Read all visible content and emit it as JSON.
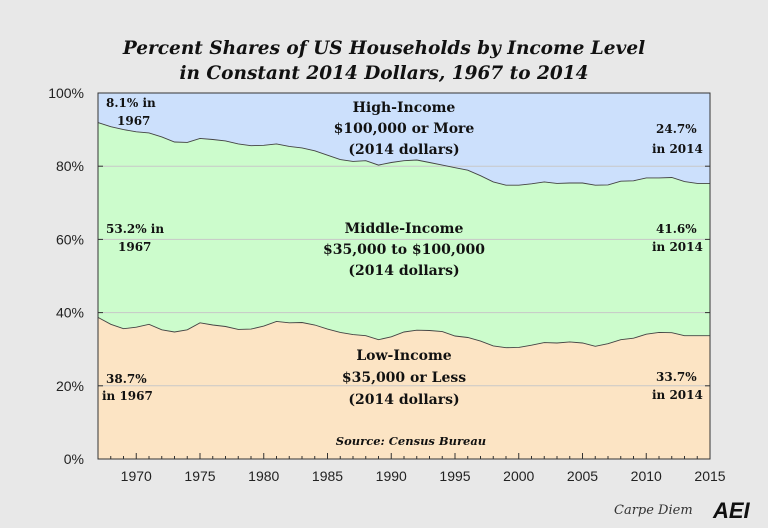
{
  "chart_data": {
    "type": "area",
    "title": [
      "Percent Shares of US Households by Income Level",
      "in Constant 2014 Dollars, 1967 to 2014"
    ],
    "xlabel": "",
    "ylabel": "",
    "xlim": [
      1967,
      2015
    ],
    "ylim": [
      0,
      100
    ],
    "x_ticks": [
      1970,
      1975,
      1980,
      1985,
      1990,
      1995,
      2000,
      2005,
      2010,
      2015
    ],
    "x_tick_labels": [
      "1970",
      "1975",
      "1980",
      "1985",
      "1990",
      "1995",
      "2000",
      "2005",
      "2010",
      "2015"
    ],
    "y_ticks": [
      0,
      20,
      40,
      60,
      80,
      100
    ],
    "y_tick_labels": [
      "0%",
      "20%",
      "40%",
      "60%",
      "80%",
      "100%"
    ],
    "grid": true,
    "x": [
      1967,
      1968,
      1969,
      1970,
      1971,
      1972,
      1973,
      1974,
      1975,
      1976,
      1977,
      1978,
      1979,
      1980,
      1981,
      1982,
      1983,
      1984,
      1985,
      1986,
      1987,
      1988,
      1989,
      1990,
      1991,
      1992,
      1993,
      1994,
      1995,
      1996,
      1997,
      1998,
      1999,
      2000,
      2001,
      2002,
      2003,
      2004,
      2005,
      2006,
      2007,
      2008,
      2009,
      2010,
      2011,
      2012,
      2013,
      2014
    ],
    "series": [
      {
        "name": "Low-Income",
        "color": "#fce4c4",
        "values": [
          38.7,
          36.8,
          35.6,
          36.0,
          36.8,
          35.3,
          34.7,
          35.3,
          37.2,
          36.6,
          36.2,
          35.4,
          35.5,
          36.3,
          37.6,
          37.2,
          37.3,
          36.6,
          35.5,
          34.6,
          34.0,
          33.7,
          32.6,
          33.4,
          34.7,
          35.2,
          35.1,
          34.8,
          33.6,
          33.2,
          32.2,
          30.9,
          30.4,
          30.5,
          31.1,
          31.8,
          31.7,
          32.0,
          31.7,
          30.8,
          31.5,
          32.6,
          33.0,
          34.1,
          34.6,
          34.5,
          33.7,
          33.7
        ]
      },
      {
        "name": "Middle-Income",
        "color": "#ccfccc",
        "values": [
          53.2,
          54.0,
          54.4,
          53.4,
          52.3,
          52.7,
          51.9,
          51.2,
          50.4,
          50.7,
          50.7,
          50.7,
          50.1,
          49.4,
          48.5,
          48.2,
          47.7,
          47.6,
          47.5,
          47.2,
          47.3,
          47.8,
          47.7,
          47.6,
          46.8,
          46.5,
          45.9,
          45.5,
          46.0,
          45.7,
          45.2,
          44.8,
          44.4,
          44.3,
          44.1,
          43.9,
          43.6,
          43.4,
          43.7,
          44.0,
          43.4,
          43.3,
          43.0,
          42.7,
          42.2,
          42.4,
          42.1,
          41.6
        ]
      },
      {
        "name": "High-Income",
        "color": "#cce0fc",
        "values": [
          8.1,
          9.2,
          10.0,
          10.6,
          10.9,
          12.0,
          13.4,
          13.5,
          12.4,
          12.7,
          13.1,
          13.9,
          14.4,
          14.3,
          13.9,
          14.6,
          15.0,
          15.8,
          17.0,
          18.2,
          18.7,
          18.5,
          19.7,
          19.0,
          18.5,
          18.3,
          19.0,
          19.7,
          20.4,
          21.1,
          22.6,
          24.3,
          25.2,
          25.2,
          24.8,
          24.3,
          24.7,
          24.6,
          24.6,
          25.2,
          25.1,
          24.1,
          24.0,
          23.2,
          23.2,
          23.1,
          24.2,
          24.7
        ]
      }
    ],
    "series_labels": {
      "high": [
        "High-Income",
        "$100,000 or More",
        "(2014 dollars)"
      ],
      "middle": [
        "Middle-Income",
        "$35,000 to $100,000",
        "(2014 dollars)"
      ],
      "low": [
        "Low-Income",
        "$35,000 or Less",
        "(2014 dollars)"
      ]
    },
    "annotations": {
      "high_1967": [
        "8.1% in",
        "1967"
      ],
      "high_2014": [
        "24.7%",
        "in 2014"
      ],
      "middle_1967": [
        "53.2% in",
        "1967"
      ],
      "middle_2014": [
        "41.6%",
        "in 2014"
      ],
      "low_1967": [
        "38.7%",
        "in 1967"
      ],
      "low_2014": [
        "33.7%",
        "in 2014"
      ]
    },
    "source": "Source: Census Bureau"
  },
  "footer": {
    "brand": "Carpe Diem",
    "logo_text": "AEI",
    "logo_icon": "aei-logo-icon"
  }
}
